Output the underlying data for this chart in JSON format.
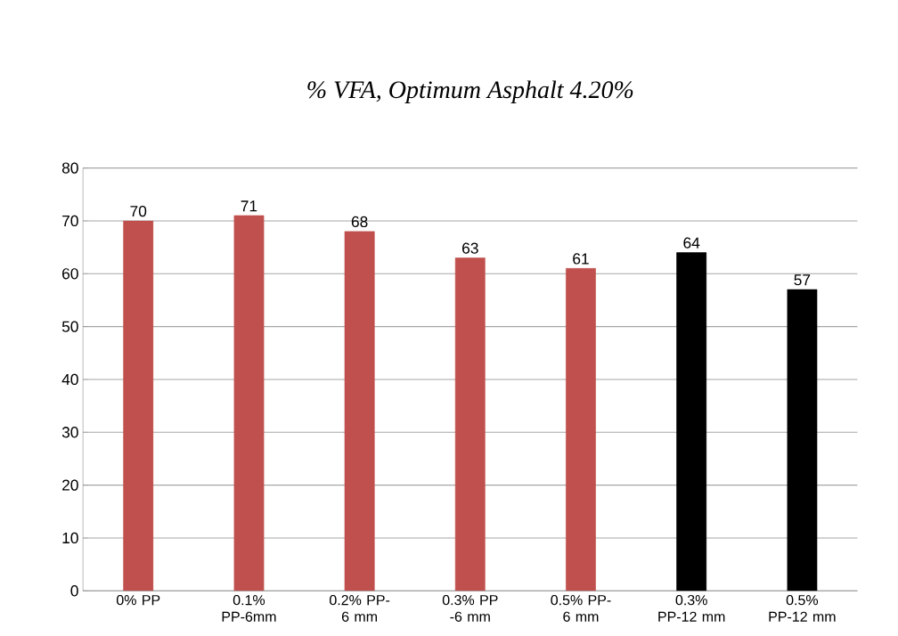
{
  "chart_data": {
    "type": "bar",
    "title": "% VFA, Optimum Asphalt 4.20%",
    "categories": [
      "0% PP",
      "0.1% PP-6mm",
      "0.2% PP- 6 mm",
      "0.3% PP -6 mm",
      "0.5% PP- 6 mm",
      "0.3% PP-12 mm",
      "0.5% PP-12 mm"
    ],
    "values": [
      70,
      71,
      68,
      63,
      61,
      64,
      57
    ],
    "colors": [
      "#c0504d",
      "#c0504d",
      "#c0504d",
      "#c0504d",
      "#c0504d",
      "#000000",
      "#000000"
    ],
    "ylim": [
      0,
      80
    ],
    "yticks": [
      0,
      10,
      20,
      30,
      40,
      50,
      60,
      70,
      80
    ],
    "grid": "y",
    "data_labels": true
  }
}
